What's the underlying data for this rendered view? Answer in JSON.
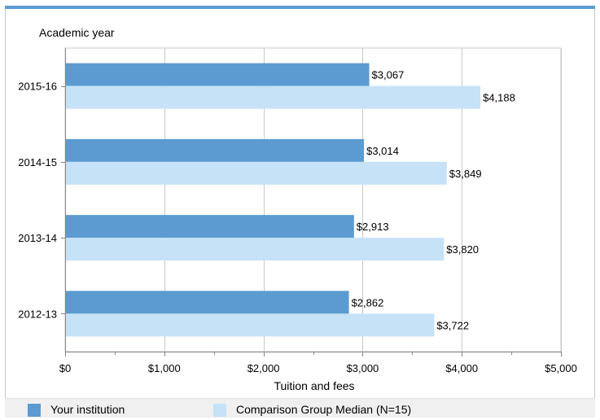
{
  "chart_data": {
    "type": "bar",
    "orientation": "horizontal",
    "categories": [
      "2015-16",
      "2014-15",
      "2013-14",
      "2012-13"
    ],
    "series": [
      {
        "name": "Your institution",
        "values": [
          3067,
          3014,
          2913,
          2862
        ],
        "labels": [
          "$3,067",
          "$3,014",
          "$2,913",
          "$2,862"
        ],
        "color": "#5b9bd1"
      },
      {
        "name": "Comparison Group Median (N=15)",
        "values": [
          4188,
          3849,
          3820,
          3722
        ],
        "labels": [
          "$4,188",
          "$3,849",
          "$3,820",
          "$3,722"
        ],
        "color": "#c5e2f7"
      }
    ],
    "xlim": [
      0,
      5000
    ],
    "xticks": [
      0,
      1000,
      2000,
      3000,
      4000,
      5000
    ],
    "xtick_labels": [
      "$0",
      "$1,000",
      "$2,000",
      "$3,000",
      "$4,000",
      "$5,000"
    ],
    "xlabel": "Tuition and fees",
    "ylabel": "Academic year",
    "grid": true,
    "legend_position": "bottom"
  },
  "colors": {
    "accent": "#5b9bd1",
    "comparison": "#c5e2f7",
    "grid": "#c8c8c8"
  }
}
